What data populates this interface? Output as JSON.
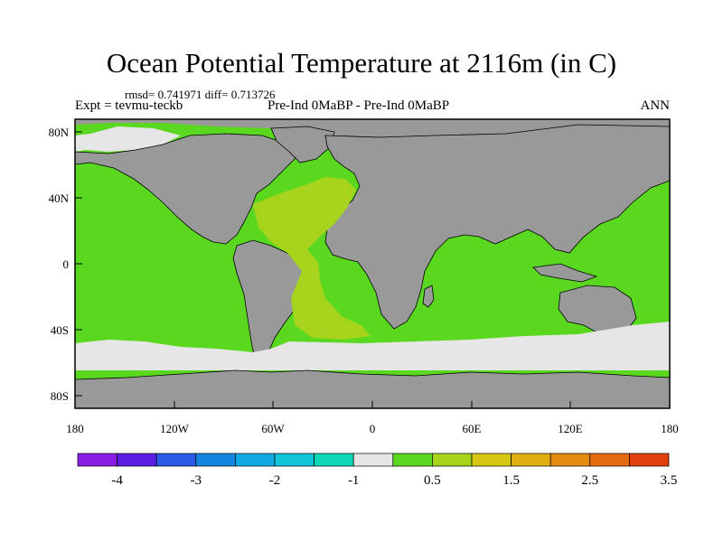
{
  "title": "Ocean Potential Temperature at 2116m (in C)",
  "stats": "rmsd= 0.741971 diff= 0.713726",
  "expt": "Expt = tevmu-teckb",
  "comparison": "Pre-Ind 0MaBP - Pre-Ind 0MaBP",
  "season": "ANN",
  "lon_ticks": [
    "180",
    "120W",
    "60W",
    "0",
    "60E",
    "120E",
    "180"
  ],
  "lat_ticks": [
    "80N",
    "40N",
    "0",
    "40S",
    "80S"
  ],
  "colorbar": {
    "colors": [
      "#8a1fe3",
      "#5a1ee3",
      "#2a5ae6",
      "#1486e0",
      "#11a9e3",
      "#10c3d8",
      "#10d6b8",
      "#e6e6e6",
      "#5ad81f",
      "#a6d31c",
      "#d6c712",
      "#e0ae10",
      "#e38b10",
      "#e36b10",
      "#e23f0f"
    ],
    "labels": [
      "-4",
      "-3",
      "-2",
      "-1",
      "0.5",
      "1.5",
      "2.5",
      "3.5"
    ]
  },
  "legend_colors": {
    "land": "#999999",
    "ocean_small_diff": "#5ad81f",
    "ocean_near_zero": "#e6e6e6",
    "ocean_medium_diff": "#a6d31c"
  }
}
